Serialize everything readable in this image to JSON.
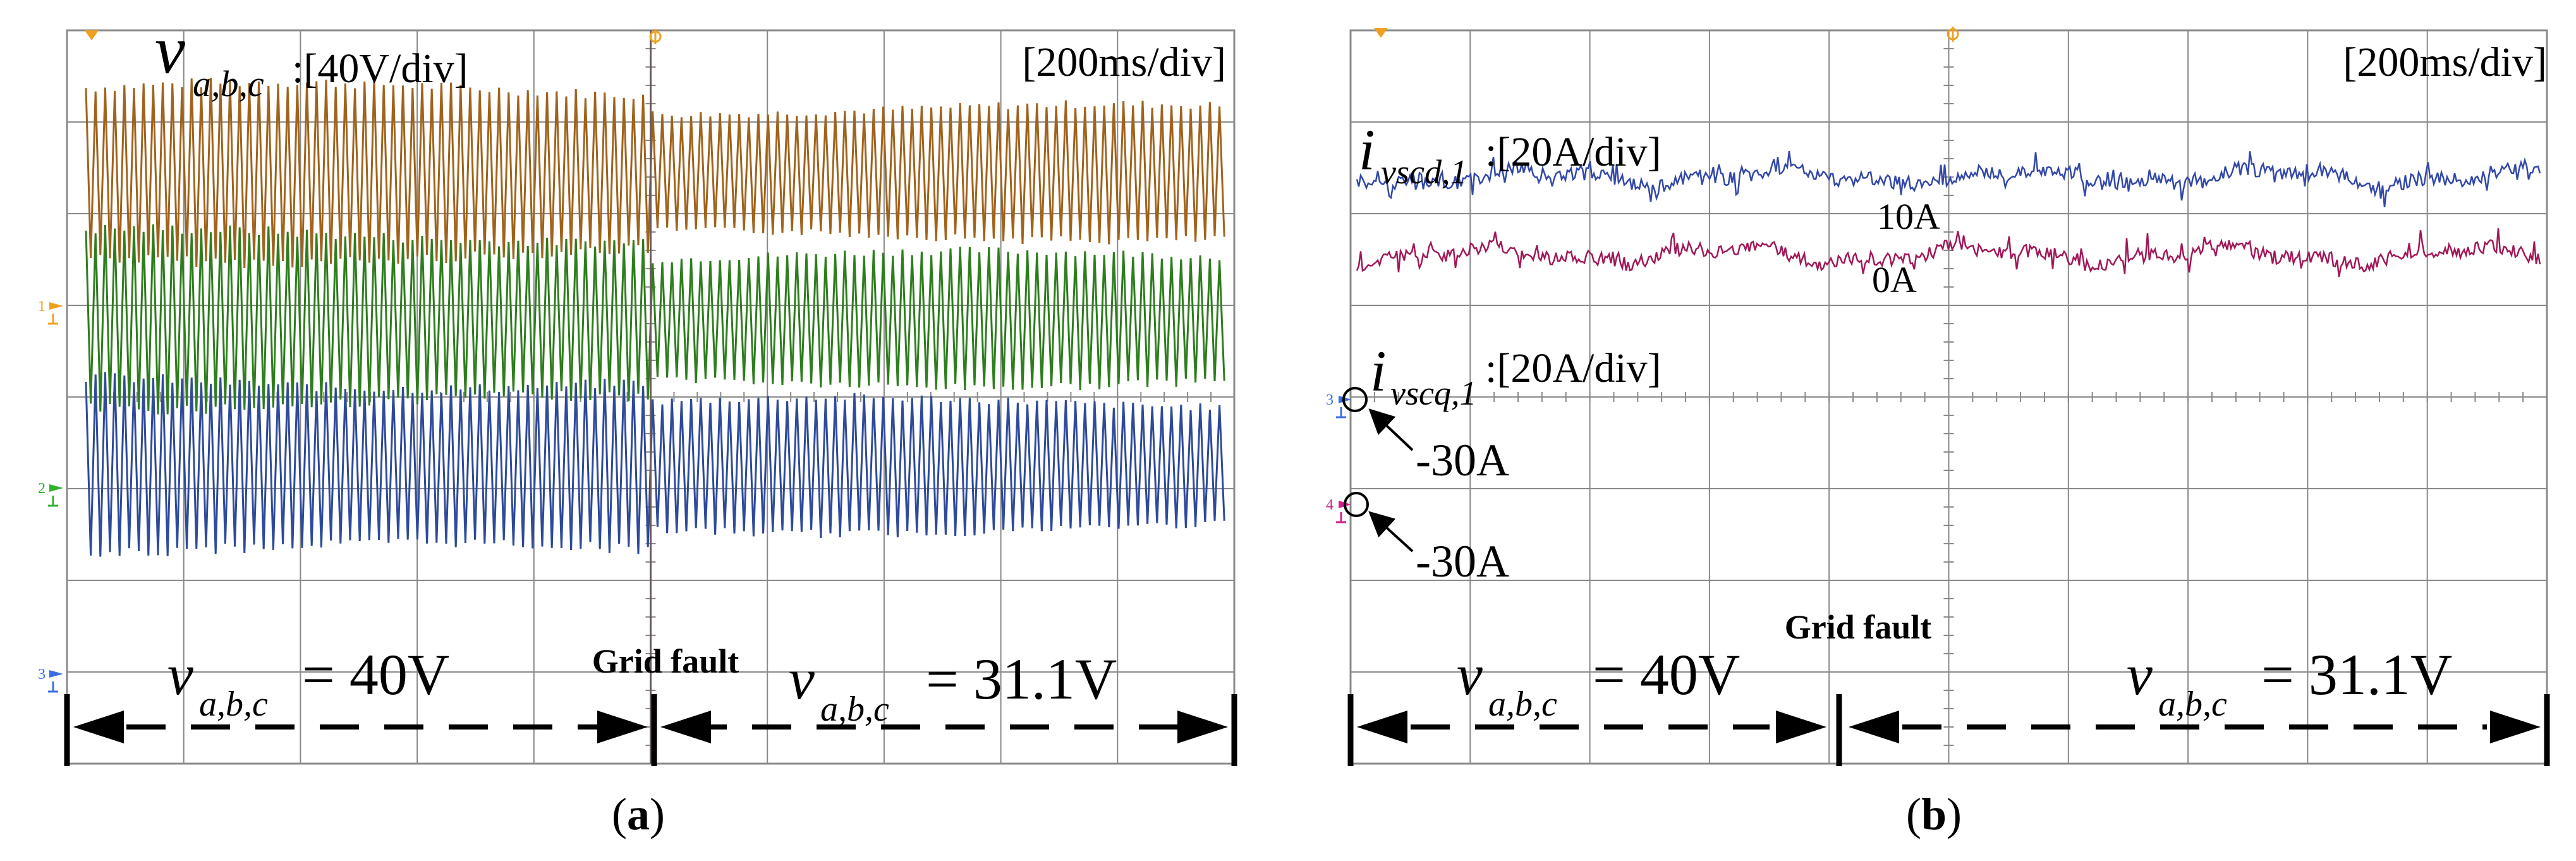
{
  "colors": {
    "grid": "#8a8a8a",
    "va": "#a0631c",
    "vb": "#2e7d1e",
    "vc": "#2e4a9a",
    "id": "#3348a8",
    "iq": "#a01858",
    "ch1": "#f0a020",
    "ch2": "#2fb02f",
    "ch3": "#3a6ee0",
    "ch4": "#d0208a"
  },
  "chart_data": [
    {
      "type": "line",
      "panel": "(a)",
      "title": "",
      "ylabel_sym": "v",
      "ylabel_sub": "a,b,c",
      "ylabel_scale": ":[40V/div]",
      "time_scale": "[200ms/div]",
      "xdiv": 10,
      "ydiv": 8,
      "fault_division": 5,
      "fault_label": "Grid fault",
      "pre_sym": "v",
      "pre_sub": "a,b,c",
      "pre_val": "= 40V",
      "post_sym": "v",
      "post_sub": "a,b,c",
      "post_val": "= 31.1V",
      "markers": [
        "1",
        "2",
        "3"
      ],
      "series": [
        {
          "name": "v_a",
          "center_div": 1.55,
          "amp_pre_div": 0.95,
          "amp_post_div": 0.72
        },
        {
          "name": "v_b",
          "center_div": 3.15,
          "amp_pre_div": 0.95,
          "amp_post_div": 0.72
        },
        {
          "name": "v_c",
          "center_div": 4.75,
          "amp_pre_div": 0.95,
          "amp_post_div": 0.72
        }
      ]
    },
    {
      "type": "line",
      "panel": "(b)",
      "title": "",
      "time_scale": "[200ms/div]",
      "xdiv": 10,
      "ydiv": 8,
      "fault_division": 4,
      "fault_label": "Grid fault",
      "id_sym": "i",
      "id_sub": "vscd,1",
      "id_scale": ":[20A/div]",
      "iq_sym": "i",
      "iq_sub": "vscq,1",
      "iq_scale": ":[20A/div]",
      "level_10A": "10A",
      "level_0A": "0A",
      "ref3_label": "-30A",
      "ref4_label": "-30A",
      "pre_sym": "v",
      "pre_sub": "a,b,c",
      "pre_val": "= 40V",
      "post_sym": "v",
      "post_sub": "a,b,c",
      "post_val": "= 31.1V",
      "markers": [
        "3",
        "4"
      ],
      "series": [
        {
          "name": "i_vscd,1",
          "value_A": 10,
          "center_div": 1.6
        },
        {
          "name": "i_vscq,1",
          "value_A": 0,
          "center_div": 2.45
        }
      ]
    }
  ]
}
